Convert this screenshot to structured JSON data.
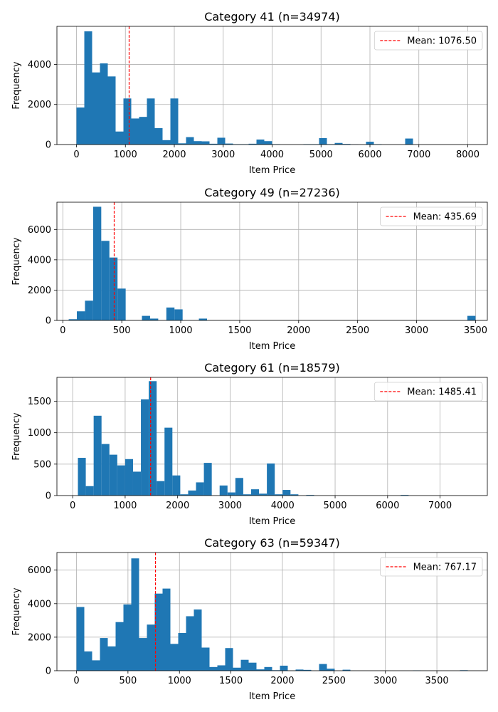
{
  "chart_data": [
    {
      "type": "bar",
      "title": "Category 41 (n=34974)",
      "xlabel": "Item Price",
      "ylabel": "Frequency",
      "xlim": [
        -400,
        8400
      ],
      "ylim": [
        0,
        5900
      ],
      "xticks": [
        0,
        1000,
        2000,
        3000,
        4000,
        5000,
        6000,
        7000,
        8000
      ],
      "yticks": [
        0,
        2000,
        4000
      ],
      "bin_start": 0,
      "bin_width": 160,
      "values": [
        1850,
        5650,
        3600,
        4050,
        3400,
        650,
        2300,
        1300,
        1380,
        2300,
        820,
        220,
        2300,
        60,
        370,
        170,
        160,
        40,
        340,
        50,
        20,
        20,
        40,
        250,
        170,
        20,
        0,
        0,
        0,
        20,
        20,
        320,
        20,
        80,
        30,
        10,
        0,
        140,
        20,
        0,
        0,
        0,
        300,
        0,
        0,
        0,
        0,
        0,
        0,
        0
      ],
      "mean_line": {
        "value": 1076.5,
        "label": "Mean: 1076.50",
        "color": "#ff0000"
      },
      "bar_color": "#1f77b4",
      "grid": true,
      "legend_position": "top-right"
    },
    {
      "type": "bar",
      "title": "Category 49 (n=27236)",
      "xlabel": "Item Price",
      "ylabel": "Frequency",
      "xlim": [
        -50,
        3600
      ],
      "ylim": [
        0,
        7800
      ],
      "xticks": [
        0,
        500,
        1000,
        1500,
        2000,
        2500,
        3000,
        3500
      ],
      "yticks": [
        0,
        2000,
        4000,
        6000
      ],
      "bin_start": 50,
      "bin_width": 69,
      "values": [
        80,
        600,
        1300,
        7500,
        5250,
        4150,
        2100,
        0,
        0,
        300,
        120,
        0,
        850,
        730,
        0,
        0,
        120,
        0,
        0,
        0,
        0,
        0,
        0,
        0,
        0,
        0,
        0,
        0,
        0,
        0,
        0,
        0,
        0,
        0,
        0,
        0,
        0,
        0,
        0,
        0,
        0,
        0,
        0,
        0,
        0,
        0,
        0,
        0,
        0,
        300
      ],
      "mean_line": {
        "value": 435.69,
        "label": "Mean: 435.69",
        "color": "#ff0000"
      },
      "bar_color": "#1f77b4",
      "grid": true,
      "legend_position": "top-right"
    },
    {
      "type": "bar",
      "title": "Category 61 (n=18579)",
      "xlabel": "Item Price",
      "ylabel": "Frequency",
      "xlim": [
        -300,
        7900
      ],
      "ylim": [
        0,
        1880
      ],
      "xticks": [
        0,
        1000,
        2000,
        3000,
        4000,
        5000,
        6000,
        7000
      ],
      "yticks": [
        0,
        500,
        1000,
        1500
      ],
      "bin_start": 100,
      "bin_width": 150,
      "values": [
        600,
        150,
        1270,
        820,
        650,
        480,
        580,
        380,
        1530,
        1820,
        230,
        1080,
        320,
        20,
        80,
        210,
        520,
        0,
        160,
        50,
        280,
        20,
        100,
        30,
        510,
        20,
        90,
        20,
        0,
        10,
        0,
        0,
        0,
        0,
        0,
        0,
        0,
        0,
        0,
        0,
        0,
        10,
        0,
        0,
        0,
        0,
        0,
        0,
        0,
        0
      ],
      "mean_line": {
        "value": 1485.41,
        "label": "Mean: 1485.41",
        "color": "#ff0000"
      },
      "bar_color": "#1f77b4",
      "grid": true,
      "legend_position": "top-right"
    },
    {
      "type": "bar",
      "title": "Category 63 (n=59347)",
      "xlabel": "Item Price",
      "ylabel": "Frequency",
      "xlim": [
        -190,
        3990
      ],
      "ylim": [
        0,
        7050
      ],
      "xticks": [
        0,
        500,
        1000,
        1500,
        2000,
        2500,
        3000,
        3500
      ],
      "yticks": [
        0,
        2000,
        4000,
        6000
      ],
      "bin_start": 0,
      "bin_width": 76,
      "values": [
        3800,
        1150,
        620,
        1950,
        1450,
        2900,
        3950,
        6700,
        1950,
        2750,
        4600,
        4900,
        1600,
        2250,
        3250,
        3650,
        1380,
        220,
        320,
        1350,
        180,
        650,
        480,
        80,
        220,
        30,
        300,
        10,
        70,
        50,
        0,
        400,
        120,
        0,
        60,
        0,
        0,
        0,
        0,
        0,
        0,
        0,
        0,
        20,
        0,
        0,
        0,
        0,
        0,
        30
      ],
      "mean_line": {
        "value": 767.17,
        "label": "Mean: 767.17",
        "color": "#ff0000"
      },
      "bar_color": "#1f77b4",
      "grid": true,
      "legend_position": "top-right"
    }
  ]
}
